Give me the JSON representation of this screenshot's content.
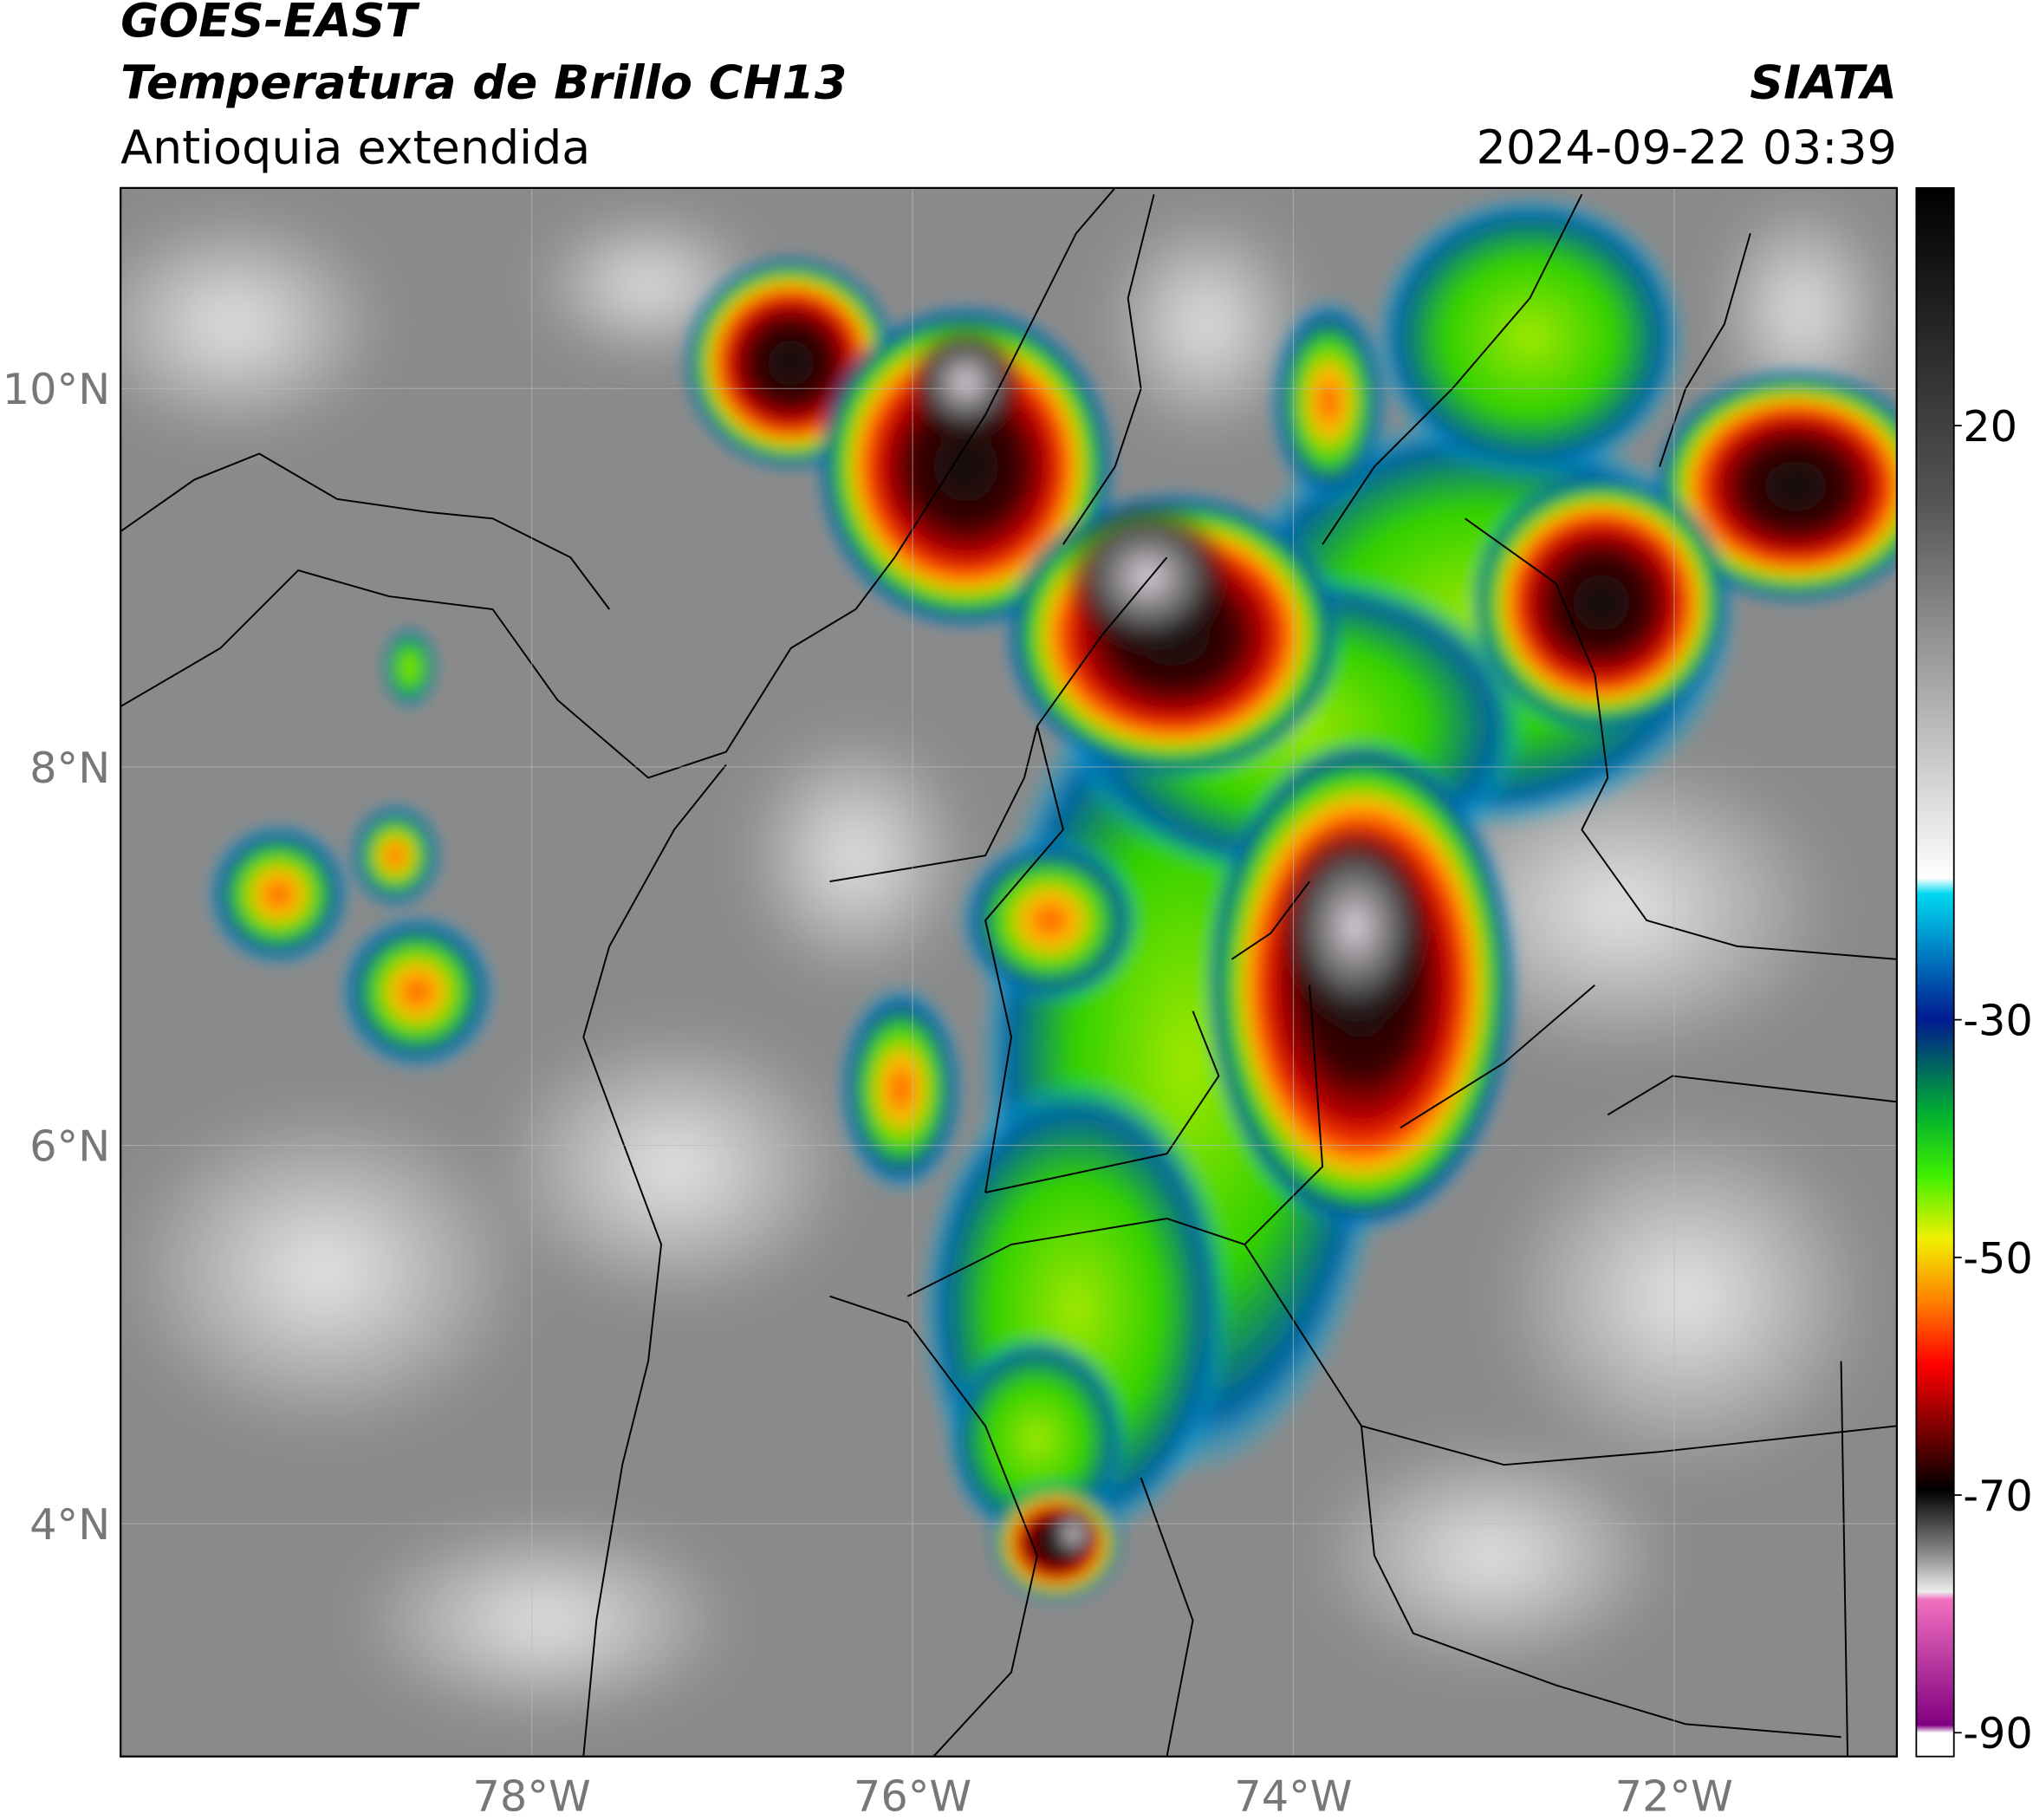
{
  "header": {
    "title": "GOES-EAST",
    "subtitle": "Temperatura de Brillo CH13",
    "region": "Antioquia extendida",
    "source": "SIATA",
    "datetime": "2024-09-22 03:39"
  },
  "map": {
    "xlim": [
      -80.16,
      -70.83
    ],
    "ylim": [
      2.77,
      11.06
    ],
    "xticks": [
      {
        "value": -78,
        "label": "78°W"
      },
      {
        "value": -76,
        "label": "76°W"
      },
      {
        "value": -74,
        "label": "74°W"
      },
      {
        "value": -72,
        "label": "72°W"
      }
    ],
    "yticks": [
      {
        "value": 4,
        "label": "4°N"
      },
      {
        "value": 6,
        "label": "6°N"
      },
      {
        "value": 8,
        "label": "8°N"
      },
      {
        "value": 10,
        "label": "10°N"
      }
    ],
    "grid": true
  },
  "colorbar": {
    "lim": [
      -92,
      40
    ],
    "ticks": [
      20,
      -30,
      -50,
      -70,
      -90
    ]
  }
}
